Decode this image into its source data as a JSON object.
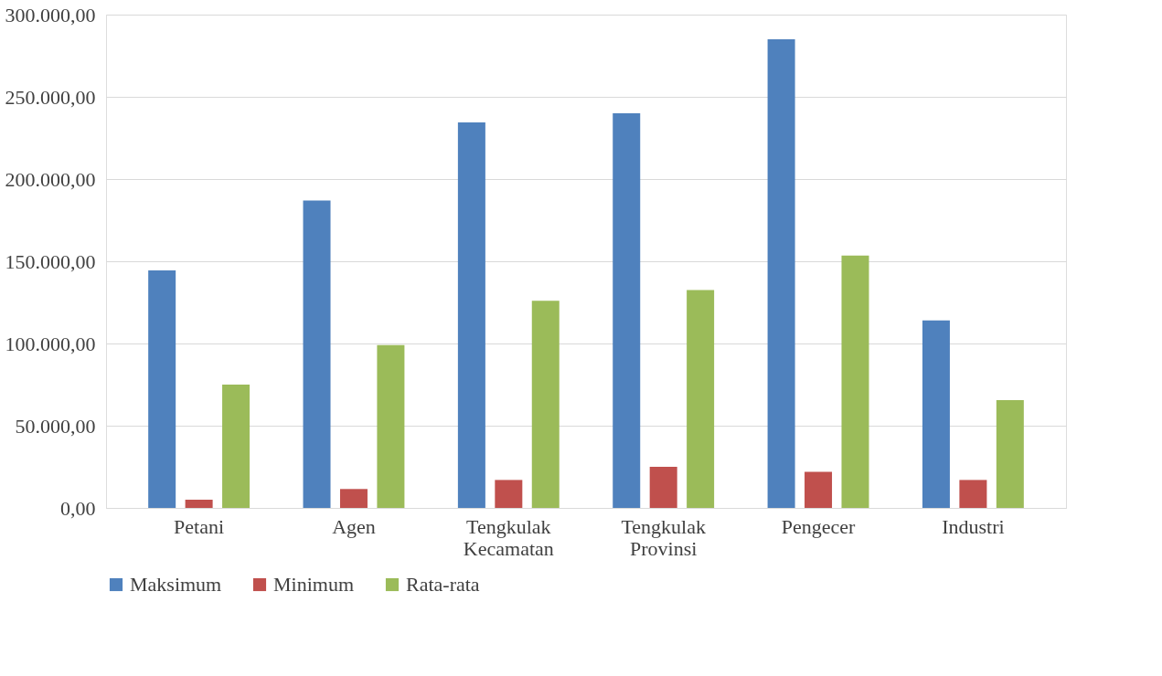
{
  "chart_data": {
    "type": "bar",
    "categories": [
      "Petani",
      "Agen",
      "Tengkulak Kecamatan",
      "Tengkulak Provinsi",
      "Pengecer",
      "Industri"
    ],
    "series": [
      {
        "name": "Maksimum",
        "color": "#4f81bd",
        "values": [
          144500,
          187000,
          234500,
          240000,
          285000,
          114000
        ]
      },
      {
        "name": "Minimum",
        "color": "#c0504d",
        "values": [
          5000,
          11500,
          17000,
          25000,
          22000,
          17000
        ]
      },
      {
        "name": "Rata-rata",
        "color": "#9bbb59",
        "values": [
          75000,
          99000,
          126000,
          132500,
          153500,
          65500
        ]
      }
    ],
    "ylim": [
      0,
      300000
    ],
    "yticks": [
      {
        "value": 0,
        "label": "0,00"
      },
      {
        "value": 50000,
        "label": "50.000,00"
      },
      {
        "value": 100000,
        "label": "100.000,00"
      },
      {
        "value": 150000,
        "label": "150.000,00"
      },
      {
        "value": 200000,
        "label": "200.000,00"
      },
      {
        "value": 250000,
        "label": "250.000,00"
      },
      {
        "value": 300000,
        "label": "300.000,00"
      }
    ],
    "grid": "y",
    "legend": "bottom"
  }
}
